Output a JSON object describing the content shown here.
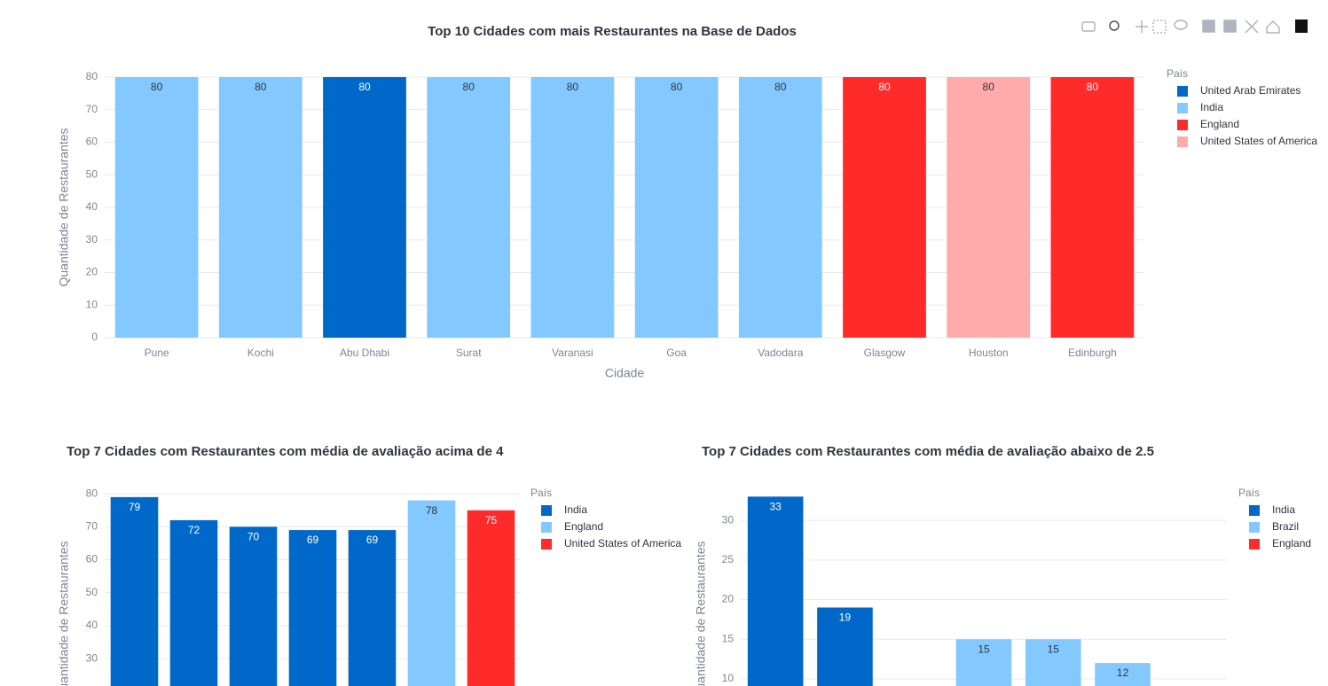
{
  "chart_data": [
    {
      "type": "bar",
      "title": "Top 10 Cidades com mais Restaurantes na Base de Dados",
      "categories": [
        "Pune",
        "Kochi",
        "Abu Dhabi",
        "Surat",
        "Varanasi",
        "Goa",
        "Vadodara",
        "Glasgow",
        "Houston",
        "Edinburgh"
      ],
      "series": [
        {
          "name": "United Arab Emirates",
          "color": "#0068c9",
          "values": [
            null,
            null,
            80,
            null,
            null,
            null,
            null,
            null,
            null,
            null
          ]
        },
        {
          "name": "India",
          "color": "#83c9ff",
          "values": [
            80,
            80,
            null,
            80,
            80,
            80,
            80,
            null,
            null,
            null
          ]
        },
        {
          "name": "England",
          "color": "#ff2b2b",
          "values": [
            null,
            null,
            null,
            null,
            null,
            null,
            null,
            80,
            null,
            80
          ]
        },
        {
          "name": "United States of America",
          "color": "#ffabab",
          "values": [
            null,
            null,
            null,
            null,
            null,
            null,
            null,
            null,
            80,
            null
          ]
        }
      ],
      "xlabel": "Cidade",
      "ylabel": "Quantidade de Restaurantes",
      "legend_title": "País",
      "ylim": [
        0,
        80
      ],
      "yticks": [
        0,
        10,
        20,
        30,
        40,
        50,
        60,
        70,
        80
      ],
      "grid": true
    },
    {
      "type": "bar",
      "title": "Top 7 Cidades com Restaurantes com média de avaliação acima de 4",
      "categories": [
        null,
        null,
        null,
        null,
        null,
        null,
        null
      ],
      "series": [
        {
          "name": "India",
          "color": "#0068c9",
          "values": [
            79,
            72,
            70,
            69,
            69,
            null,
            null
          ]
        },
        {
          "name": "England",
          "color": "#83c9ff",
          "values": [
            null,
            null,
            null,
            null,
            null,
            78,
            null
          ]
        },
        {
          "name": "United States of America",
          "color": "#ff2b2b",
          "values": [
            null,
            null,
            null,
            null,
            null,
            null,
            75
          ]
        }
      ],
      "ylabel": "Quantidade de Restaurantes",
      "legend_title": "País",
      "ylim": [
        21.7,
        83
      ],
      "yticks": [
        30,
        40,
        50,
        60,
        70,
        80
      ],
      "grid": true
    },
    {
      "type": "bar",
      "title": "Top 7 Cidades com Restaurantes com média de avaliação abaixo de 2.5",
      "categories": [
        null,
        null,
        null,
        null,
        null,
        null,
        null
      ],
      "series": [
        {
          "name": "India",
          "color": "#0068c9",
          "values": [
            33,
            19,
            null,
            null,
            null,
            null,
            null
          ]
        },
        {
          "name": "Brazil",
          "color": "#83c9ff",
          "values": [
            null,
            null,
            null,
            15,
            15,
            12,
            null
          ]
        },
        {
          "name": "England",
          "color": "#ff2b2b",
          "values": [
            null,
            null,
            null,
            null,
            null,
            null,
            null
          ]
        }
      ],
      "ylabel": "Quantidade de Restaurantes",
      "legend_title": "País",
      "ylim": [
        9.1,
        34.6
      ],
      "yticks": [
        10,
        15,
        20,
        25,
        30
      ],
      "grid": true
    }
  ]
}
